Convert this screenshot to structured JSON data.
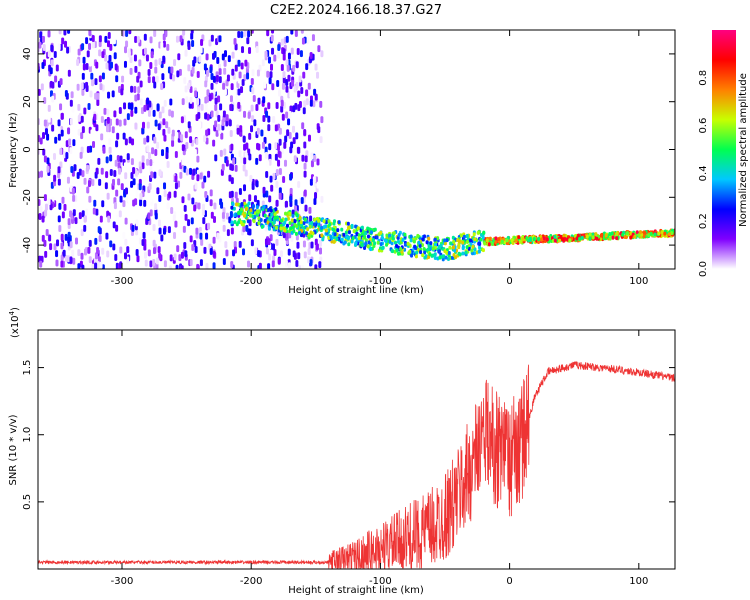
{
  "title": "C2E2.2024.166.18.37.G27",
  "chart_data": [
    {
      "type": "heatmap",
      "xlabel": "Height of straight line (km)",
      "ylabel": "Frequency (Hz)",
      "xlim": [
        -365,
        128
      ],
      "ylim": [
        -50,
        50
      ],
      "xticks": [
        -300,
        -200,
        -100,
        0,
        100
      ],
      "yticks": [
        -40,
        -20,
        0,
        20,
        40
      ],
      "colorbar": {
        "label": "Normalized spectral amplitude",
        "ticks": [
          "0.0",
          "0.2",
          "0.4",
          "0.6",
          "0.8"
        ],
        "range": [
          0,
          1
        ],
        "colormap": [
          "#ffffff",
          "#8000ff",
          "#0000ff",
          "#00c8ff",
          "#00ff50",
          "#c8ff00",
          "#ff8000",
          "#ff0000",
          "#ff0080"
        ]
      },
      "features": {
        "noise_region_x": [
          -365,
          -145
        ],
        "signal_track": [
          {
            "x": -200,
            "y": -27
          },
          {
            "x": -150,
            "y": -33
          },
          {
            "x": -100,
            "y": -38
          },
          {
            "x": -50,
            "y": -42
          },
          {
            "x": -30,
            "y": -39
          },
          {
            "x": 0,
            "y": -38
          },
          {
            "x": 50,
            "y": -37
          },
          {
            "x": 100,
            "y": -35.5
          },
          {
            "x": 128,
            "y": -35
          }
        ]
      }
    },
    {
      "type": "line",
      "xlabel": "Height of straight line (km)",
      "ylabel": "SNR (10 * v/v)",
      "y_multiplier": "(x10",
      "y_multiplier_exp": "4",
      "y_multiplier_close": ")",
      "xlim": [
        -365,
        128
      ],
      "ylim": [
        0,
        1.78
      ],
      "xticks": [
        -300,
        -200,
        -100,
        0,
        100
      ],
      "yticks": [
        "0.5",
        "1.0",
        "1.5"
      ],
      "series_color": "#ee3333",
      "profile": [
        {
          "x": -365,
          "y": 0.05
        },
        {
          "x": -140,
          "y": 0.05
        },
        {
          "x": -120,
          "y": 0.08
        },
        {
          "x": -100,
          "y": 0.15
        },
        {
          "x": -80,
          "y": 0.22
        },
        {
          "x": -60,
          "y": 0.3
        },
        {
          "x": -45,
          "y": 0.45
        },
        {
          "x": -30,
          "y": 0.75
        },
        {
          "x": -20,
          "y": 1.0
        },
        {
          "x": -10,
          "y": 0.9
        },
        {
          "x": 0,
          "y": 0.8
        },
        {
          "x": 10,
          "y": 0.95
        },
        {
          "x": 20,
          "y": 1.3
        },
        {
          "x": 30,
          "y": 1.47
        },
        {
          "x": 50,
          "y": 1.52
        },
        {
          "x": 80,
          "y": 1.49
        },
        {
          "x": 110,
          "y": 1.45
        },
        {
          "x": 128,
          "y": 1.42
        }
      ]
    }
  ]
}
